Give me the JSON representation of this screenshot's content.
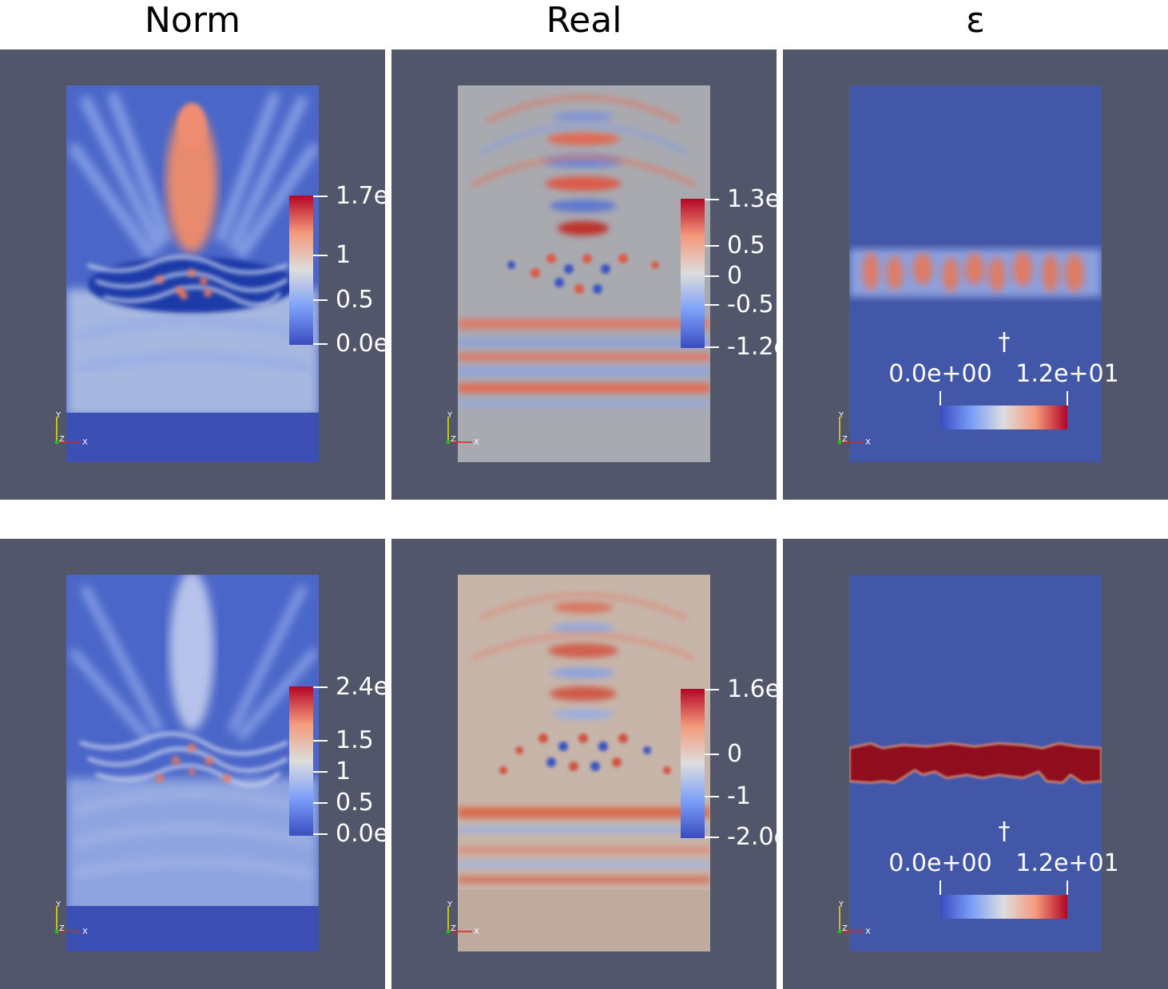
{
  "columns": [
    "Norm",
    "Real",
    "ε"
  ],
  "rows": [
    {
      "norm": {
        "ticks": [
          "1.7e",
          "1",
          "0.5",
          "0.0e"
        ]
      },
      "real": {
        "ticks": [
          "1.3e",
          "0.5",
          "0",
          "-0.5",
          "-1.2e"
        ]
      },
      "eps": {
        "title": "†",
        "min": "0.0e+00",
        "max": "1.2e+01"
      }
    },
    {
      "norm": {
        "ticks": [
          "2.4e",
          "1.5",
          "1",
          "0.5",
          "0.0e"
        ]
      },
      "real": {
        "ticks": [
          "1.6e",
          "0",
          "-1",
          "-2.0e"
        ]
      },
      "eps": {
        "title": "†",
        "min": "0.0e+00",
        "max": "1.2e+01"
      }
    }
  ],
  "axes": {
    "x": "X",
    "y": "Y",
    "z": "Z"
  },
  "colors": {
    "background": "#52566b",
    "cmap_low": "#3a4cc0",
    "cmap_mid": "#dddddd",
    "cmap_high": "#b40426",
    "eps_low": "#4257a8",
    "eps_high": "#8f0a1e"
  }
}
